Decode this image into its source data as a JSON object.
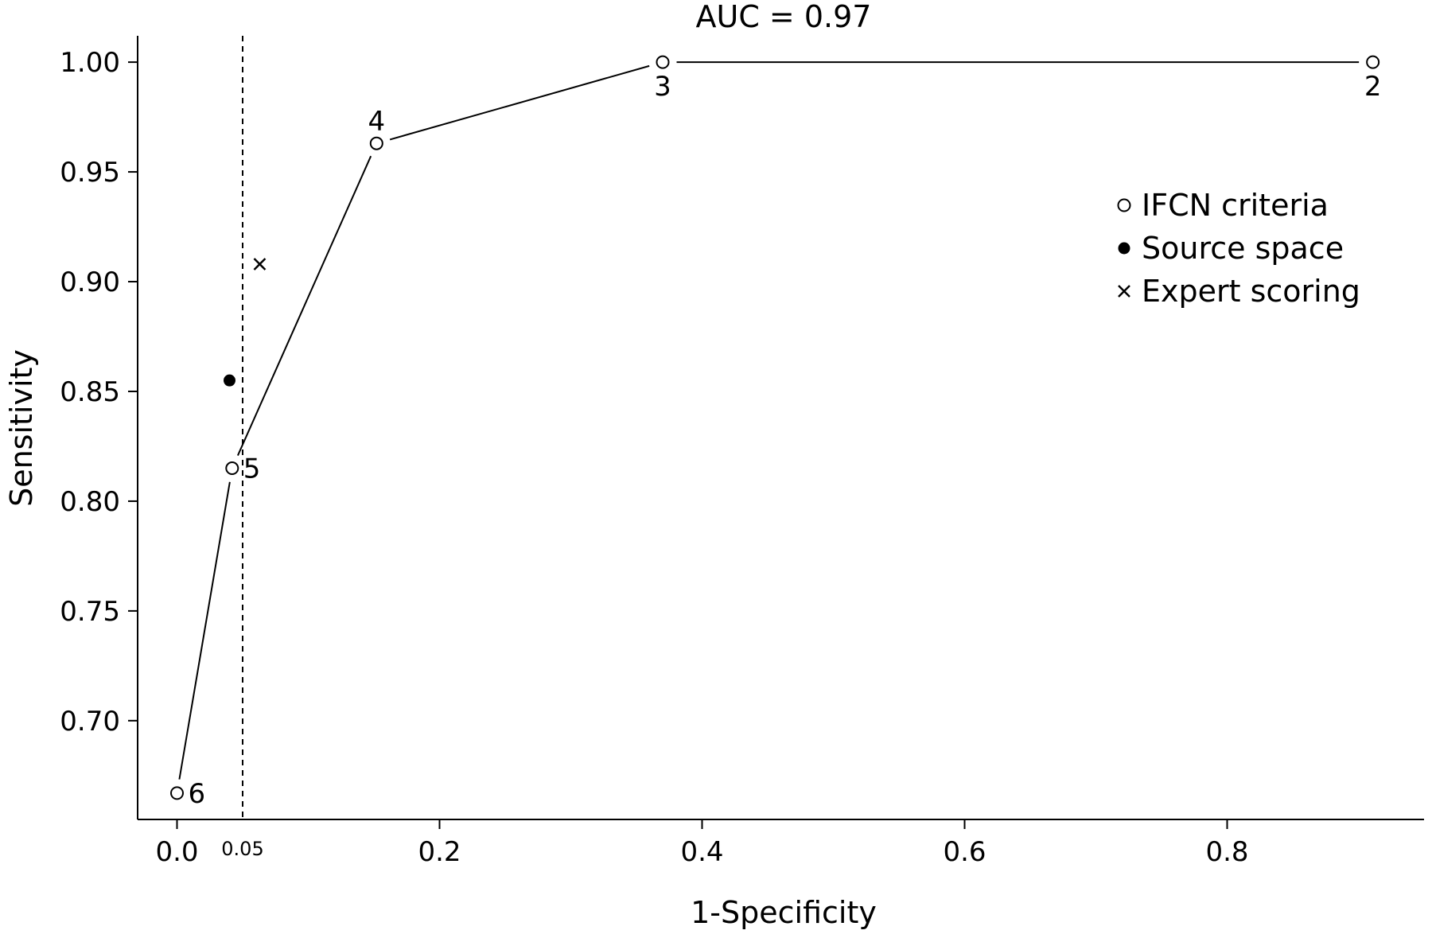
{
  "chart_data": {
    "type": "scatter",
    "title": "AUC = 0.97",
    "xlabel": "1-Specificity",
    "ylabel": "Sensitivity",
    "xlim": [
      -0.03,
      0.95
    ],
    "ylim": [
      0.655,
      1.012
    ],
    "x_ticks": [
      0.0,
      0.2,
      0.4,
      0.6,
      0.8
    ],
    "x_tick_labels": [
      "0.0",
      "0.2",
      "0.4",
      "0.6",
      "0.8"
    ],
    "extra_x_tick": {
      "value": 0.05,
      "label": "0.05"
    },
    "y_ticks": [
      0.7,
      0.75,
      0.8,
      0.85,
      0.9,
      0.95,
      1.0
    ],
    "y_tick_labels": [
      "0.70",
      "0.75",
      "0.80",
      "0.85",
      "0.90",
      "0.95",
      "1.00"
    ],
    "reference_line": {
      "x": 0.05,
      "style": "dashed"
    },
    "grid": false,
    "legend_position": "right",
    "series": [
      {
        "name": "IFCN criteria",
        "marker": "open-circle",
        "connected": true,
        "points": [
          {
            "x": 0.0,
            "y": 0.667,
            "label": "6"
          },
          {
            "x": 0.042,
            "y": 0.815,
            "label": "5"
          },
          {
            "x": 0.152,
            "y": 0.963,
            "label": "4"
          },
          {
            "x": 0.37,
            "y": 1.0,
            "label": "3"
          },
          {
            "x": 0.911,
            "y": 1.0,
            "label": "2"
          }
        ]
      },
      {
        "name": "Source space",
        "marker": "filled-circle",
        "connected": false,
        "points": [
          {
            "x": 0.04,
            "y": 0.855
          }
        ]
      },
      {
        "name": "Expert scoring",
        "marker": "cross",
        "connected": false,
        "points": [
          {
            "x": 0.063,
            "y": 0.908
          }
        ]
      }
    ]
  }
}
